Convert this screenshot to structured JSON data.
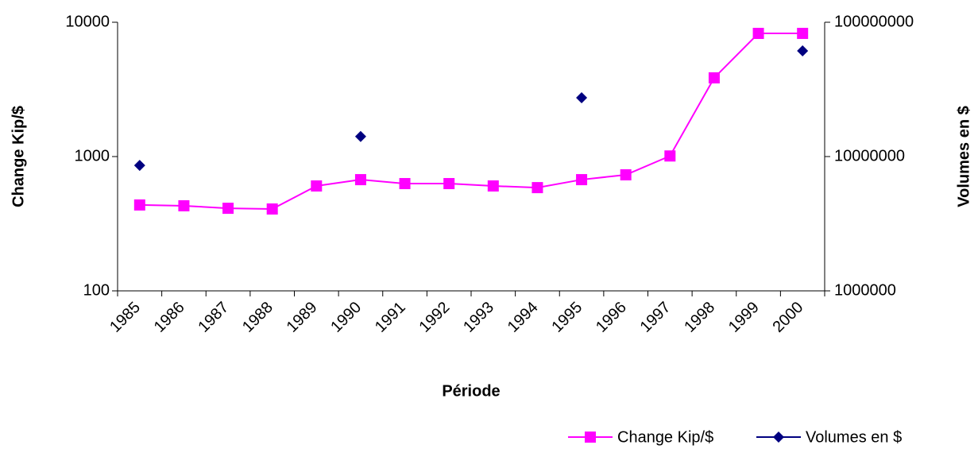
{
  "chart_data": {
    "type": "line",
    "x_label": "Période",
    "y_label": "Change Kip/$",
    "y2_label": "Volumes en $",
    "categories": [
      "1985",
      "1986",
      "1987",
      "1988",
      "1989",
      "1990",
      "1991",
      "1992",
      "1993",
      "1994",
      "1995",
      "1996",
      "1997",
      "1998",
      "1999",
      "2000"
    ],
    "series": [
      {
        "name": "Change Kip/$",
        "color": "#ff00ff",
        "marker": "square",
        "values": [
          436,
          430,
          412,
          407,
          604,
          673,
          629,
          629,
          604,
          587,
          673,
          731,
          1010,
          3854,
          8260,
          8260
        ]
      },
      {
        "name": "Volumes en $",
        "color": "#000080",
        "marker": "diamond",
        "axis": "y2",
        "values": [
          8600000,
          null,
          null,
          null,
          null,
          14100000,
          null,
          null,
          null,
          null,
          27400000,
          null,
          null,
          null,
          null,
          61200000
        ]
      }
    ],
    "ylim": [
      100,
      10000
    ],
    "yticks": [
      100,
      1000,
      10000
    ],
    "ylog": true,
    "y2lim": [
      1000000,
      100000000
    ],
    "y2ticks": [
      1000000,
      10000000,
      100000000
    ],
    "y2log": true,
    "legend": "bottom-right"
  }
}
